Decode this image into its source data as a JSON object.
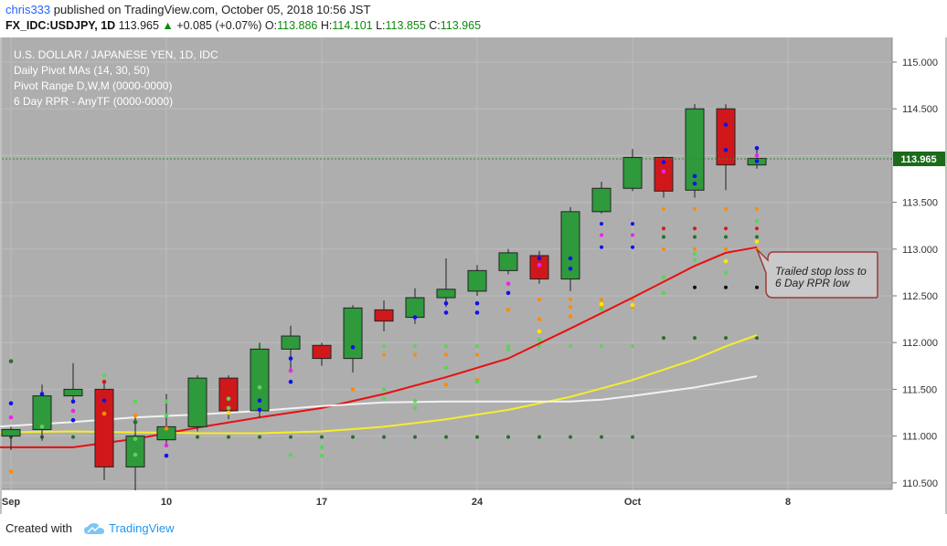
{
  "header": {
    "author": "chris333",
    "published_text": "published on TradingView.com, October 05, 2018 10:56 JST",
    "symbol": "FX_IDC:USDJPY, 1D",
    "last": "113.965",
    "change_arrow": "▲",
    "change": "+0.085 (+0.07%)",
    "open_label": "O:",
    "open": "113.886",
    "high_label": "H:",
    "high": "114.101",
    "low_label": "L:",
    "low": "113.855",
    "close_label": "C:",
    "close": "113.965"
  },
  "legend": [
    "U.S. DOLLAR / JAPANESE YEN, 1D, IDC",
    "Daily Pivot MAs (14, 30, 50)",
    "Pivot Range D,W,M (0000-0000)",
    "6 Day RPR - AnyTF (0000-0000)"
  ],
  "annotation": [
    "Trailed stop loss to",
    "6 Day RPR low"
  ],
  "footer": {
    "created_with": "Created with",
    "brand": "TradingView"
  },
  "colors": {
    "plot_bg": "#aeaeae",
    "up_candle": "#2e9a3c",
    "down_candle": "#d0181a",
    "ma14": "#e81010",
    "ma30": "#f5ee2a",
    "ma50": "#f2f2f2",
    "last_price_bg": "#1a6b1a",
    "accent": "#2196f3"
  },
  "chart_data": {
    "type": "candlestick",
    "title": "U.S. DOLLAR / JAPANESE YEN, 1D, IDC",
    "y_ticks": [
      "115.000",
      "114.500",
      "114.000",
      "113.500",
      "113.000",
      "112.500",
      "112.000",
      "111.500",
      "111.000",
      "110.500"
    ],
    "ylim": [
      110.4,
      115.2
    ],
    "x_ticks": [
      {
        "label": "Sep",
        "day": 0
      },
      {
        "label": "10",
        "day": 10
      },
      {
        "label": "17",
        "day": 20
      },
      {
        "label": "24",
        "day": 30
      },
      {
        "label": "Oct",
        "day": 40
      },
      {
        "label": "8",
        "day": 50
      }
    ],
    "last_price": "113.965",
    "candles": [
      {
        "day": 0,
        "o": 111.0,
        "h": 111.1,
        "l": 110.85,
        "c": 111.07
      },
      {
        "day": 2,
        "o": 111.07,
        "h": 111.55,
        "l": 110.95,
        "c": 111.43
      },
      {
        "day": 4,
        "o": 111.43,
        "h": 111.78,
        "l": 111.35,
        "c": 111.5
      },
      {
        "day": 6,
        "o": 111.5,
        "h": 111.6,
        "l": 110.53,
        "c": 110.67
      },
      {
        "day": 8,
        "o": 110.67,
        "h": 111.22,
        "l": 110.42,
        "c": 111.0
      },
      {
        "day": 10,
        "o": 110.96,
        "h": 111.45,
        "l": 110.92,
        "c": 111.1
      },
      {
        "day": 12,
        "o": 111.1,
        "h": 111.65,
        "l": 111.05,
        "c": 111.62
      },
      {
        "day": 14,
        "o": 111.62,
        "h": 111.65,
        "l": 111.18,
        "c": 111.27
      },
      {
        "day": 16,
        "o": 111.27,
        "h": 112.0,
        "l": 111.2,
        "c": 111.93
      },
      {
        "day": 18,
        "o": 111.93,
        "h": 112.18,
        "l": 111.7,
        "c": 112.07
      },
      {
        "day": 20,
        "o": 111.97,
        "h": 112.0,
        "l": 111.75,
        "c": 111.83
      },
      {
        "day": 22,
        "o": 111.83,
        "h": 112.4,
        "l": 111.68,
        "c": 112.37
      },
      {
        "day": 24,
        "o": 112.35,
        "h": 112.45,
        "l": 112.12,
        "c": 112.23
      },
      {
        "day": 26,
        "o": 112.27,
        "h": 112.58,
        "l": 112.2,
        "c": 112.48
      },
      {
        "day": 28,
        "o": 112.48,
        "h": 112.9,
        "l": 112.38,
        "c": 112.57
      },
      {
        "day": 30,
        "o": 112.55,
        "h": 112.83,
        "l": 112.5,
        "c": 112.77
      },
      {
        "day": 32,
        "o": 112.77,
        "h": 113.0,
        "l": 112.73,
        "c": 112.96
      },
      {
        "day": 34,
        "o": 112.93,
        "h": 112.98,
        "l": 112.63,
        "c": 112.68
      },
      {
        "day": 36,
        "o": 112.68,
        "h": 113.45,
        "l": 112.55,
        "c": 113.4
      },
      {
        "day": 38,
        "o": 113.4,
        "h": 113.72,
        "l": 113.38,
        "c": 113.65
      },
      {
        "day": 40,
        "o": 113.65,
        "h": 114.07,
        "l": 113.62,
        "c": 113.98
      },
      {
        "day": 42,
        "o": 113.98,
        "h": 113.99,
        "l": 113.55,
        "c": 113.62
      },
      {
        "day": 44,
        "o": 113.63,
        "h": 114.55,
        "l": 113.55,
        "c": 114.5
      },
      {
        "day": 46,
        "o": 114.5,
        "h": 114.55,
        "l": 113.63,
        "c": 113.9
      },
      {
        "day": 48,
        "o": 113.9,
        "h": 114.1,
        "l": 113.86,
        "c": 113.97
      }
    ],
    "series": [
      {
        "name": "MA 14",
        "color": "#e81010",
        "points": [
          [
            -1,
            110.88
          ],
          [
            4,
            110.88
          ],
          [
            8,
            110.97
          ],
          [
            12,
            111.09
          ],
          [
            16,
            111.2
          ],
          [
            20,
            111.3
          ],
          [
            24,
            111.45
          ],
          [
            28,
            111.63
          ],
          [
            32,
            111.83
          ],
          [
            36,
            112.15
          ],
          [
            40,
            112.48
          ],
          [
            42,
            112.65
          ],
          [
            44,
            112.82
          ],
          [
            46,
            112.96
          ],
          [
            48,
            113.02
          ]
        ]
      },
      {
        "name": "MA 30",
        "color": "#f5ee2a",
        "points": [
          [
            -1,
            111.04
          ],
          [
            4,
            111.05
          ],
          [
            8,
            111.04
          ],
          [
            12,
            111.03
          ],
          [
            16,
            111.03
          ],
          [
            20,
            111.05
          ],
          [
            24,
            111.1
          ],
          [
            28,
            111.18
          ],
          [
            32,
            111.28
          ],
          [
            36,
            111.42
          ],
          [
            40,
            111.6
          ],
          [
            44,
            111.82
          ],
          [
            46,
            111.96
          ],
          [
            48,
            112.08
          ]
        ]
      },
      {
        "name": "MA 50",
        "color": "#f2f2f2",
        "points": [
          [
            -1,
            111.1
          ],
          [
            4,
            111.15
          ],
          [
            8,
            111.2
          ],
          [
            12,
            111.23
          ],
          [
            16,
            111.27
          ],
          [
            20,
            111.32
          ],
          [
            24,
            111.36
          ],
          [
            28,
            111.37
          ],
          [
            32,
            111.37
          ],
          [
            36,
            111.37
          ],
          [
            38,
            111.39
          ],
          [
            40,
            111.43
          ],
          [
            44,
            111.52
          ],
          [
            46,
            111.58
          ],
          [
            48,
            111.64
          ]
        ]
      }
    ],
    "pivot_levels": [
      {
        "days": [
          0,
          2,
          4,
          6,
          8,
          10,
          12,
          14,
          16,
          18,
          20,
          22,
          24,
          26,
          28,
          30,
          32,
          34,
          36,
          38,
          40
        ],
        "value": 110.99,
        "color": "#2a6e2a"
      },
      {
        "days": [
          42,
          44,
          46,
          48
        ],
        "value": 112.05,
        "color": "#2a6e2a"
      },
      {
        "days": [
          44,
          46,
          48
        ],
        "value": 112.59,
        "color": "#111111"
      },
      {
        "days": [
          22,
          24,
          26,
          28,
          30
        ],
        "value": 111.87,
        "color": "#ff8c00"
      },
      {
        "days": [
          34,
          36,
          38,
          40
        ],
        "value": 112.46,
        "color": "#ff8c00"
      },
      {
        "days": [
          42,
          44,
          46,
          48
        ],
        "value": 113.43,
        "color": "#ff8c00"
      },
      {
        "days": [
          42,
          44,
          46,
          48
        ],
        "value": 113.22,
        "color": "#d9161c"
      },
      {
        "days": [
          42,
          44,
          46,
          48
        ],
        "value": 113.13,
        "color": "#2a6e2a"
      },
      {
        "days": [
          42,
          44,
          46,
          48
        ],
        "value": 113.0,
        "color": "#ff8c00"
      },
      {
        "days": [
          38,
          40
        ],
        "value": 113.27,
        "color": "#1010ee"
      },
      {
        "days": [
          38,
          40
        ],
        "value": 113.15,
        "color": "#ee22ee"
      },
      {
        "days": [
          38,
          40
        ],
        "value": 113.02,
        "color": "#1010ee"
      },
      {
        "days": [
          36,
          38,
          40
        ],
        "value": 112.38,
        "color": "#ff8c00"
      },
      {
        "days": [
          16,
          18,
          20,
          22,
          24,
          26,
          28,
          30,
          32,
          34,
          36,
          38,
          40
        ],
        "value": 111.96,
        "color": "#5cd35c"
      }
    ],
    "dots": [
      {
        "day": 0,
        "value": 111.8,
        "color": "#2a6e2a"
      },
      {
        "day": 0,
        "value": 111.35,
        "color": "#1010ee"
      },
      {
        "day": 0,
        "value": 111.2,
        "color": "#ee22ee"
      },
      {
        "day": 0,
        "value": 110.62,
        "color": "#ff8c00"
      },
      {
        "day": 2,
        "value": 111.45,
        "color": "#1010ee"
      },
      {
        "day": 2,
        "value": 111.1,
        "color": "#5cd35c"
      },
      {
        "day": 4,
        "value": 111.37,
        "color": "#1010ee"
      },
      {
        "day": 4,
        "value": 111.27,
        "color": "#ee22ee"
      },
      {
        "day": 4,
        "value": 111.17,
        "color": "#1010ee"
      },
      {
        "day": 6,
        "value": 111.65,
        "color": "#5cd35c"
      },
      {
        "day": 6,
        "value": 111.58,
        "color": "#d9161c"
      },
      {
        "day": 6,
        "value": 111.38,
        "color": "#1010ee"
      },
      {
        "day": 6,
        "value": 111.24,
        "color": "#ff8c00"
      },
      {
        "day": 8,
        "value": 111.37,
        "color": "#5cd35c"
      },
      {
        "day": 8,
        "value": 111.22,
        "color": "#ff8c00"
      },
      {
        "day": 8,
        "value": 111.15,
        "color": "#2a6e2a"
      },
      {
        "day": 8,
        "value": 110.97,
        "color": "#5cd35c"
      },
      {
        "day": 8,
        "value": 110.8,
        "color": "#5cd35c"
      },
      {
        "day": 10,
        "value": 111.37,
        "color": "#5cd35c"
      },
      {
        "day": 10,
        "value": 111.22,
        "color": "#5cd35c"
      },
      {
        "day": 10,
        "value": 111.08,
        "color": "#ff8c00"
      },
      {
        "day": 10,
        "value": 110.9,
        "color": "#ee22ee"
      },
      {
        "day": 10,
        "value": 110.79,
        "color": "#1010ee"
      },
      {
        "day": 14,
        "value": 111.4,
        "color": "#5cd35c"
      },
      {
        "day": 14,
        "value": 111.3,
        "color": "#5cd35c"
      },
      {
        "day": 14,
        "value": 111.25,
        "color": "#ffe500"
      },
      {
        "day": 16,
        "value": 111.52,
        "color": "#5cd35c"
      },
      {
        "day": 16,
        "value": 111.38,
        "color": "#1010ee"
      },
      {
        "day": 16,
        "value": 111.28,
        "color": "#1010ee"
      },
      {
        "day": 18,
        "value": 111.83,
        "color": "#1010ee"
      },
      {
        "day": 18,
        "value": 111.7,
        "color": "#ee22ee"
      },
      {
        "day": 18,
        "value": 111.58,
        "color": "#1010ee"
      },
      {
        "day": 18,
        "value": 110.8,
        "color": "#5cd35c"
      },
      {
        "day": 20,
        "value": 110.88,
        "color": "#5cd35c"
      },
      {
        "day": 20,
        "value": 110.79,
        "color": "#5cd35c"
      },
      {
        "day": 22,
        "value": 111.95,
        "color": "#1010ee"
      },
      {
        "day": 22,
        "value": 111.5,
        "color": "#ff8c00"
      },
      {
        "day": 24,
        "value": 111.5,
        "color": "#5cd35c"
      },
      {
        "day": 24,
        "value": 111.4,
        "color": "#5cd35c"
      },
      {
        "day": 26,
        "value": 112.27,
        "color": "#1010ee"
      },
      {
        "day": 26,
        "value": 111.38,
        "color": "#5cd35c"
      },
      {
        "day": 26,
        "value": 111.3,
        "color": "#5cd35c"
      },
      {
        "day": 28,
        "value": 112.42,
        "color": "#1010ee"
      },
      {
        "day": 28,
        "value": 112.32,
        "color": "#1010ee"
      },
      {
        "day": 28,
        "value": 111.73,
        "color": "#5cd35c"
      },
      {
        "day": 28,
        "value": 111.55,
        "color": "#ff8c00"
      },
      {
        "day": 30,
        "value": 112.42,
        "color": "#1010ee"
      },
      {
        "day": 30,
        "value": 112.32,
        "color": "#1010ee"
      },
      {
        "day": 30,
        "value": 111.6,
        "color": "#ff8c00"
      },
      {
        "day": 30,
        "value": 111.58,
        "color": "#5cd35c"
      },
      {
        "day": 32,
        "value": 112.63,
        "color": "#ee22ee"
      },
      {
        "day": 32,
        "value": 112.53,
        "color": "#1010ee"
      },
      {
        "day": 32,
        "value": 112.35,
        "color": "#ff8c00"
      },
      {
        "day": 32,
        "value": 111.93,
        "color": "#5cd35c"
      },
      {
        "day": 34,
        "value": 112.9,
        "color": "#1010ee"
      },
      {
        "day": 34,
        "value": 112.83,
        "color": "#ee22ee"
      },
      {
        "day": 34,
        "value": 112.25,
        "color": "#ff8c00"
      },
      {
        "day": 34,
        "value": 112.12,
        "color": "#ffe500"
      },
      {
        "day": 34,
        "value": 112.03,
        "color": "#5cd35c"
      },
      {
        "day": 36,
        "value": 112.9,
        "color": "#1010ee"
      },
      {
        "day": 36,
        "value": 112.79,
        "color": "#1010ee"
      },
      {
        "day": 36,
        "value": 112.28,
        "color": "#ff8c00"
      },
      {
        "day": 38,
        "value": 112.41,
        "color": "#ffe500"
      },
      {
        "day": 38,
        "value": 112.36,
        "color": "#5cd35c"
      },
      {
        "day": 40,
        "value": 112.4,
        "color": "#ffe500"
      },
      {
        "day": 42,
        "value": 113.93,
        "color": "#1010ee"
      },
      {
        "day": 42,
        "value": 113.83,
        "color": "#ee22ee"
      },
      {
        "day": 42,
        "value": 112.7,
        "color": "#5cd35c"
      },
      {
        "day": 42,
        "value": 112.53,
        "color": "#5cd35c"
      },
      {
        "day": 44,
        "value": 113.78,
        "color": "#1010ee"
      },
      {
        "day": 44,
        "value": 113.7,
        "color": "#1010ee"
      },
      {
        "day": 44,
        "value": 112.95,
        "color": "#5cd35c"
      },
      {
        "day": 44,
        "value": 112.88,
        "color": "#5cd35c"
      },
      {
        "day": 46,
        "value": 114.33,
        "color": "#1010ee"
      },
      {
        "day": 46,
        "value": 114.06,
        "color": "#1010ee"
      },
      {
        "day": 46,
        "value": 112.87,
        "color": "#ffe500"
      },
      {
        "day": 46,
        "value": 112.75,
        "color": "#5cd35c"
      },
      {
        "day": 48,
        "value": 114.08,
        "color": "#1010ee"
      },
      {
        "day": 48,
        "value": 114.0,
        "color": "#ee22ee"
      },
      {
        "day": 48,
        "value": 113.94,
        "color": "#1010ee"
      },
      {
        "day": 48,
        "value": 113.3,
        "color": "#5cd35c"
      },
      {
        "day": 48,
        "value": 113.08,
        "color": "#ffe500"
      }
    ]
  }
}
